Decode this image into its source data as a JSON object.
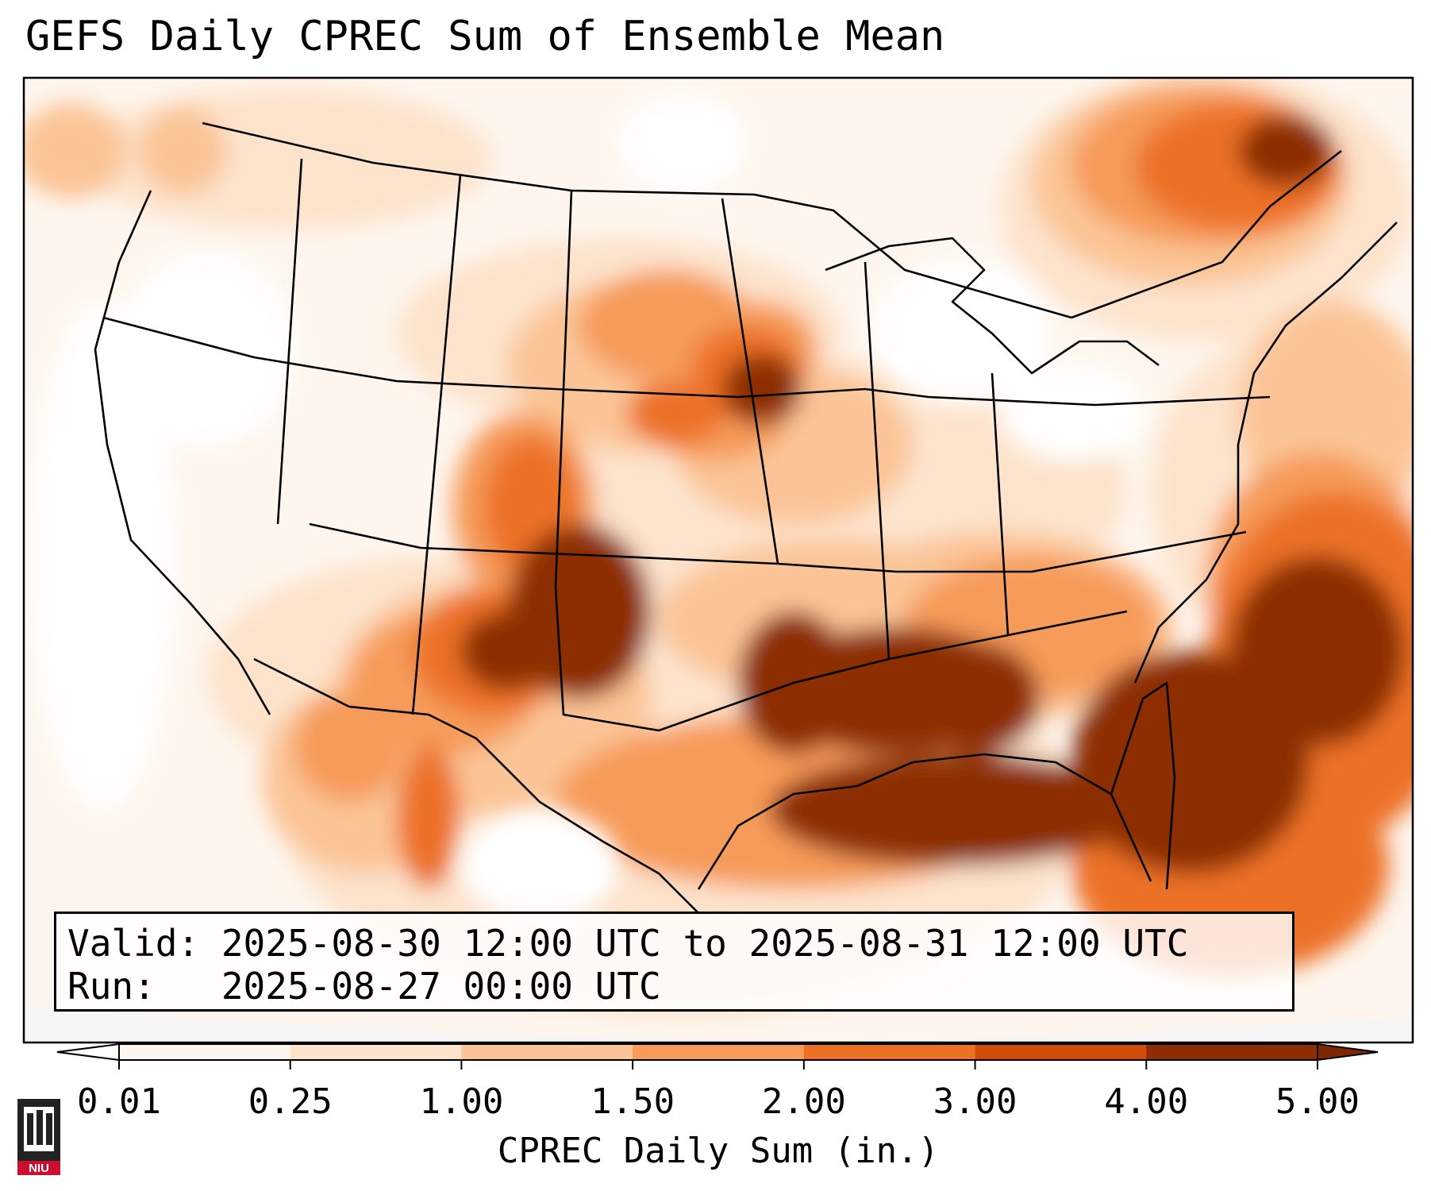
{
  "title": "GEFS Daily CPREC Sum of Ensemble Mean",
  "info": {
    "valid_line": "Valid: 2025-08-30 12:00 UTC to 2025-08-31 12:00 UTC",
    "run_line": "Run:   2025-08-27 00:00 UTC"
  },
  "colorbar": {
    "label": "CPREC Daily Sum (in.)",
    "ticks": [
      "0.01",
      "0.25",
      "1.00",
      "1.50",
      "2.00",
      "3.00",
      "4.00",
      "5.00"
    ],
    "colors": [
      "#fef6ee",
      "#fde3cc",
      "#fbc496",
      "#f69b5a",
      "#ec7126",
      "#d24d0a",
      "#8c2d04"
    ],
    "under_color": "#ffffff",
    "over_color": "#7f2704"
  },
  "logo": {
    "text": "NIU"
  }
}
